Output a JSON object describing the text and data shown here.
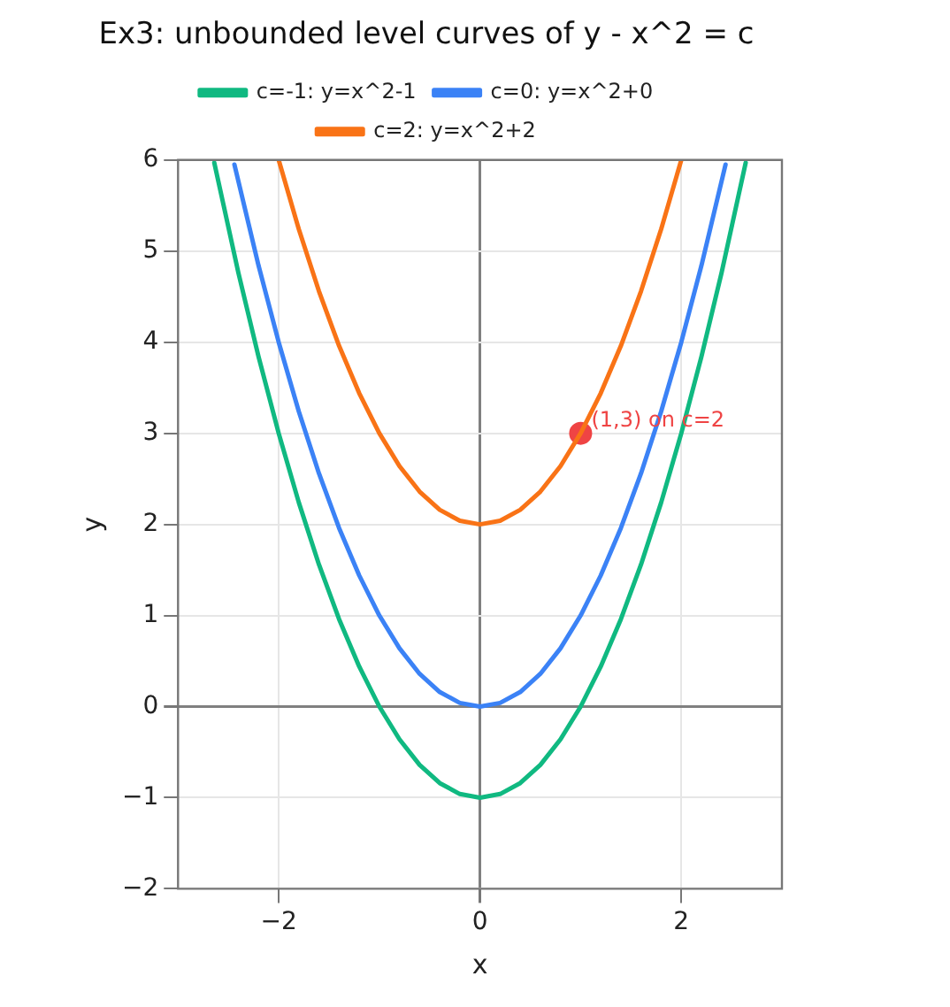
{
  "chart_data": {
    "type": "line",
    "title": "Ex3: unbounded level curves of y - x^2 = c",
    "xlabel": "x",
    "ylabel": "y",
    "xlim": [
      -3,
      3
    ],
    "xticks": [
      {
        "value": -2,
        "label": "−2"
      },
      0,
      2
    ],
    "ylim": [
      -2,
      6
    ],
    "yticks": [
      {
        "value": -2,
        "label": "−2"
      },
      {
        "value": -1,
        "label": "−1"
      },
      0,
      1,
      2,
      3,
      4,
      5,
      6
    ],
    "grid": true,
    "legend": "top",
    "marker": "none",
    "line_style": "solid",
    "series": [
      {
        "name": "c=-1: y=x^2-1",
        "color": "#10b981",
        "x": [
          -2.64,
          -2.4,
          -2.2,
          -2,
          -1.8,
          -1.6,
          -1.4,
          -1.2,
          -1,
          -0.8,
          -0.6,
          -0.4,
          -0.2,
          0,
          0.2,
          0.4,
          0.6,
          0.8,
          1,
          1.2,
          1.4,
          1.6,
          1.8,
          2,
          2.2,
          2.4,
          2.64
        ],
        "values": [
          5.97,
          4.76,
          3.84,
          3,
          2.24,
          1.56,
          0.96,
          0.44,
          0,
          -0.36,
          -0.64,
          -0.84,
          -0.96,
          -1,
          -0.96,
          -0.84,
          -0.64,
          -0.36,
          0,
          0.44,
          0.96,
          1.56,
          2.24,
          3,
          3.84,
          4.76,
          5.97
        ]
      },
      {
        "name": "c=0: y=x^2+0",
        "color": "#3b82f6",
        "x": [
          -2.44,
          -2.2,
          -2,
          -1.8,
          -1.6,
          -1.4,
          -1.2,
          -1,
          -0.8,
          -0.6,
          -0.4,
          -0.2,
          0,
          0.2,
          0.4,
          0.6,
          0.8,
          1,
          1.2,
          1.4,
          1.6,
          1.8,
          2,
          2.2,
          2.44
        ],
        "values": [
          5.95,
          4.84,
          4,
          3.24,
          2.56,
          1.96,
          1.44,
          1,
          0.64,
          0.36,
          0.16,
          0.04,
          0,
          0.04,
          0.16,
          0.36,
          0.64,
          1,
          1.44,
          1.96,
          2.56,
          3.24,
          4,
          4.84,
          5.95
        ]
      },
      {
        "name": "c=2: y=x^2+2",
        "color": "#f97316",
        "x": [
          -2,
          -1.8,
          -1.6,
          -1.4,
          -1.2,
          -1,
          -0.8,
          -0.6,
          -0.4,
          -0.2,
          0,
          0.2,
          0.4,
          0.6,
          0.8,
          1,
          1.2,
          1.4,
          1.6,
          1.8,
          2
        ],
        "values": [
          6,
          5.24,
          4.56,
          3.96,
          3.44,
          3,
          2.64,
          2.36,
          2.16,
          2.04,
          2,
          2.04,
          2.16,
          2.36,
          2.64,
          3,
          3.44,
          3.96,
          4.56,
          5.24,
          6
        ]
      },
      {
        "type": "scatter",
        "color": "#ef4444",
        "marker": "circle",
        "x": [
          1
        ],
        "values": [
          3
        ]
      }
    ],
    "annotations": [
      {
        "text": "(1,3) on c=2",
        "x": 1,
        "y": 3
      }
    ]
  }
}
